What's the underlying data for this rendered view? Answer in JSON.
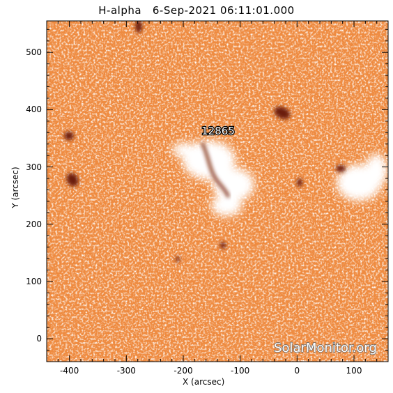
{
  "title": "H-alpha   6-Sep-2021 06:11:01.000",
  "xlabel": "X (arcsec)",
  "ylabel": "Y (arcsec)",
  "region_label": "12865",
  "watermark": "SolarMonitor.org",
  "colors": {
    "background_orange": "#f08a3c",
    "bright_white": "#ffffff",
    "dark_feature": "#6b1a08",
    "tick": "#000000"
  },
  "axes": {
    "xlim": [
      -440,
      160
    ],
    "ylim": [
      -40,
      555
    ],
    "xticks": [
      -400,
      -300,
      -200,
      -100,
      0,
      100
    ],
    "yticks": [
      0,
      100,
      200,
      300,
      400,
      500
    ]
  }
}
